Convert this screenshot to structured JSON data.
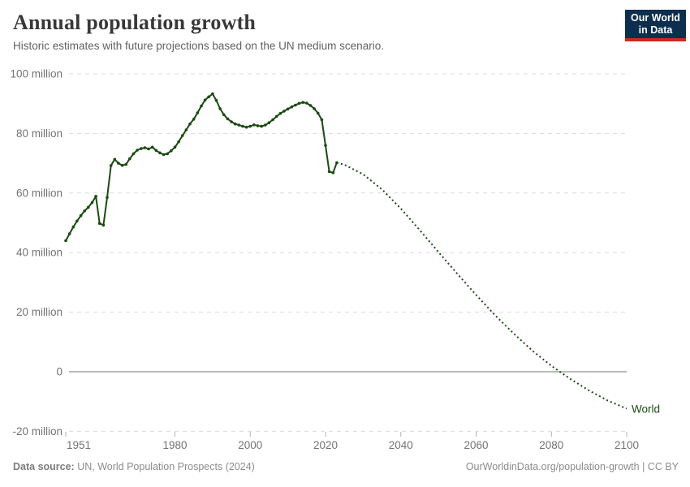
{
  "header": {
    "title": "Annual population growth",
    "subtitle": "Historic estimates with future projections based on the UN medium scenario."
  },
  "logo": {
    "line1": "Our World",
    "line2": "in Data",
    "bg_color": "#0d2e4e",
    "accent_color": "#cf2722"
  },
  "footer": {
    "source_label": "Data source:",
    "source_value": " UN, World Population Prospects (2024)",
    "right": "OurWorldinData.org/population-growth | CC BY"
  },
  "chart_data": {
    "type": "line",
    "title": "Annual population growth",
    "unit": "million people per year",
    "xlabel": "",
    "ylabel": "",
    "xlim": [
      1951,
      2100
    ],
    "ylim": [
      -20,
      100
    ],
    "grid": "dashed-horizontal",
    "color": "#1a4a12",
    "zero_line_color": "#a3a3a3",
    "gridline_color": "#dcdcdc",
    "axis_text_color": "#737373",
    "end_label": "World",
    "yticks": [
      {
        "value": 100,
        "label": "100 million"
      },
      {
        "value": 80,
        "label": "80 million"
      },
      {
        "value": 60,
        "label": "60 million"
      },
      {
        "value": 40,
        "label": "40 million"
      },
      {
        "value": 20,
        "label": "20 million"
      },
      {
        "value": 0,
        "label": "0"
      },
      {
        "value": -20,
        "label": "-20 million"
      }
    ],
    "xticks": [
      1951,
      1980,
      2000,
      2020,
      2040,
      2060,
      2080,
      2100
    ],
    "series": [
      {
        "name": "World (historic estimates)",
        "style": "solid-with-markers",
        "start_year": 1951,
        "end_year": 2023,
        "values": [
          44.0,
          46.3,
          48.6,
          50.6,
          52.4,
          54.0,
          55.2,
          56.8,
          58.9,
          49.8,
          49.2,
          58.5,
          69.2,
          71.3,
          70.0,
          69.3,
          69.6,
          71.5,
          73.2,
          74.4,
          74.9,
          75.2,
          74.8,
          75.4,
          74.3,
          73.5,
          72.9,
          73.2,
          74.2,
          75.4,
          77.2,
          79.3,
          81.2,
          83.2,
          84.8,
          86.9,
          89.2,
          91.2,
          92.3,
          93.3,
          91.1,
          88.3,
          86.3,
          84.9,
          83.9,
          83.2,
          82.8,
          82.4,
          82.1,
          82.4,
          82.9,
          82.6,
          82.4,
          82.8,
          83.6,
          84.6,
          85.7,
          86.7,
          87.5,
          88.2,
          88.9,
          89.5,
          90.1,
          90.4,
          90.2,
          89.4,
          88.3,
          86.8,
          84.6,
          76.0,
          67.2,
          66.8,
          70.2
        ]
      },
      {
        "name": "World (UN medium projection)",
        "style": "dotted",
        "points": [
          [
            2023,
            70.2
          ],
          [
            2025,
            69.5
          ],
          [
            2030,
            66.3
          ],
          [
            2035,
            61.2
          ],
          [
            2040,
            54.8
          ],
          [
            2045,
            47.6
          ],
          [
            2050,
            40.2
          ],
          [
            2055,
            32.9
          ],
          [
            2060,
            25.8
          ],
          [
            2065,
            19.0
          ],
          [
            2070,
            12.8
          ],
          [
            2075,
            7.0
          ],
          [
            2080,
            2.0
          ],
          [
            2085,
            -2.4
          ],
          [
            2090,
            -6.3
          ],
          [
            2095,
            -9.7
          ],
          [
            2100,
            -12.4
          ]
        ]
      }
    ]
  }
}
